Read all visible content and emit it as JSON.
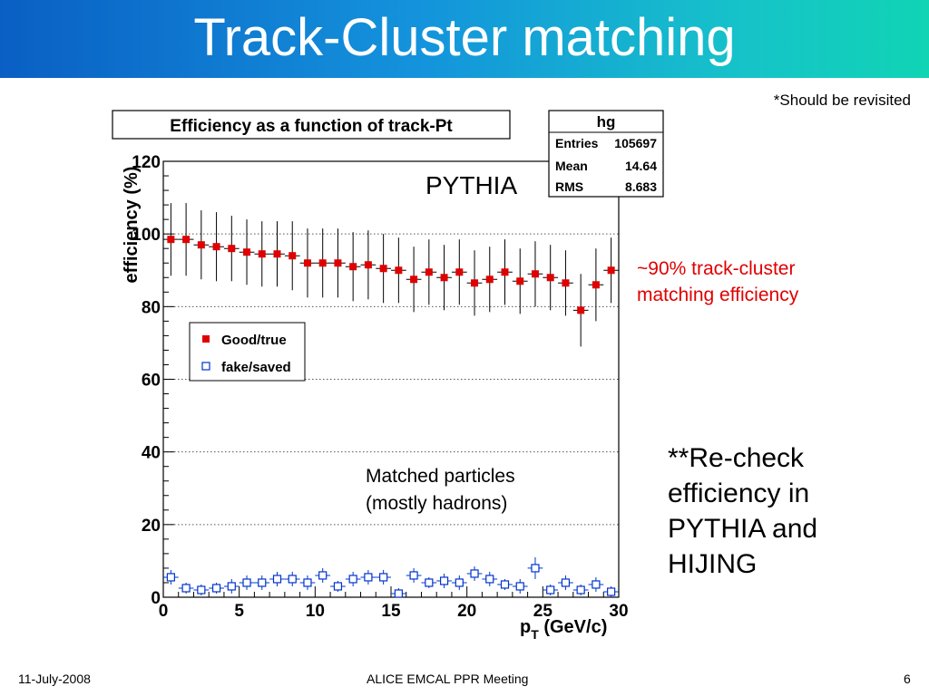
{
  "slide": {
    "title": "Track-Cluster matching",
    "revisit_note": "*Should be revisited",
    "pythia_label": "PYTHIA",
    "efficiency_note": [
      "~90% track-cluster",
      "matching efficiency"
    ],
    "matched_note": [
      "Matched particles",
      "(mostly hadrons)"
    ],
    "recheck_note": [
      "**Re-check",
      "efficiency in",
      "PYTHIA and",
      "HIJING"
    ],
    "footer": {
      "date": "11-July-2008",
      "meeting": "ALICE EMCAL PPR Meeting",
      "page": "6"
    }
  },
  "stats_box": {
    "name": "hg",
    "rows": [
      {
        "label": "Entries",
        "value": "105697"
      },
      {
        "label": "Mean",
        "value": "14.64"
      },
      {
        "label": "RMS",
        "value": "8.683"
      }
    ]
  },
  "colors": {
    "good": "#e00000",
    "fake": "#0033cc",
    "title_gradient_start": "#0a5fc4",
    "title_gradient_end": "#10d4b4"
  },
  "chart_data": {
    "type": "scatter",
    "title": "Efficiency as a function of track-Pt",
    "xlabel": "p_T (GeV/c)",
    "xlabel_main": "p",
    "xlabel_sub": "T",
    "xlabel_unit": " (GeV/c)",
    "ylabel": "efficiency (%)",
    "xlim": [
      0,
      30
    ],
    "ylim": [
      0,
      120
    ],
    "x_ticks": [
      "0",
      "5",
      "10",
      "15",
      "20",
      "25",
      "30"
    ],
    "y_ticks": [
      "0",
      "20",
      "40",
      "60",
      "80",
      "100",
      "120"
    ],
    "grid": "horizontal dotted",
    "legend_position": "left-middle",
    "series": [
      {
        "name": "Good/true",
        "marker": "filled-square",
        "x": [
          0.5,
          1.5,
          2.5,
          3.5,
          4.5,
          5.5,
          6.5,
          7.5,
          8.5,
          9.5,
          10.5,
          11.5,
          12.5,
          13.5,
          14.5,
          15.5,
          16.5,
          17.5,
          18.5,
          19.5,
          20.5,
          21.5,
          22.5,
          23.5,
          24.5,
          25.5,
          26.5,
          27.5,
          28.5,
          29.5
        ],
        "y": [
          98.5,
          98.5,
          97,
          96.5,
          96,
          95,
          94.5,
          94.5,
          94,
          92,
          92,
          92,
          91,
          91.5,
          90.5,
          90,
          87.5,
          89.5,
          88,
          89.5,
          86.5,
          87.5,
          89.5,
          87,
          89,
          88,
          86.5,
          79,
          86,
          90
        ],
        "err": [
          10,
          10,
          9.5,
          9.5,
          9,
          9,
          9,
          9,
          9.5,
          9.5,
          9.5,
          9.5,
          9.5,
          9.5,
          9.5,
          9,
          9,
          9,
          9,
          9,
          9,
          9,
          9,
          9,
          9,
          9,
          9,
          10,
          10,
          9
        ]
      },
      {
        "name": "fake/saved",
        "marker": "open-square",
        "x": [
          0.5,
          1.5,
          2.5,
          3.5,
          4.5,
          5.5,
          6.5,
          7.5,
          8.5,
          9.5,
          10.5,
          11.5,
          12.5,
          13.5,
          14.5,
          15.5,
          16.5,
          17.5,
          18.5,
          19.5,
          20.5,
          21.5,
          22.5,
          23.5,
          24.5,
          25.5,
          26.5,
          27.5,
          28.5,
          29.5
        ],
        "y": [
          5.5,
          2.5,
          2,
          2.5,
          3,
          4,
          4,
          5,
          5,
          4,
          6,
          3,
          5,
          5.5,
          5.5,
          1,
          6,
          4,
          4.5,
          4,
          6.5,
          5,
          3.5,
          3,
          8,
          2,
          4,
          2,
          3.5,
          1.5
        ],
        "err": [
          2,
          1.5,
          1.5,
          1.5,
          2,
          2,
          2,
          2,
          2,
          2,
          2,
          1.5,
          2,
          2,
          2,
          1.5,
          2,
          1.5,
          2,
          2,
          2,
          2,
          1.5,
          2,
          3,
          1.5,
          2,
          1.5,
          2,
          1.5
        ]
      }
    ]
  }
}
